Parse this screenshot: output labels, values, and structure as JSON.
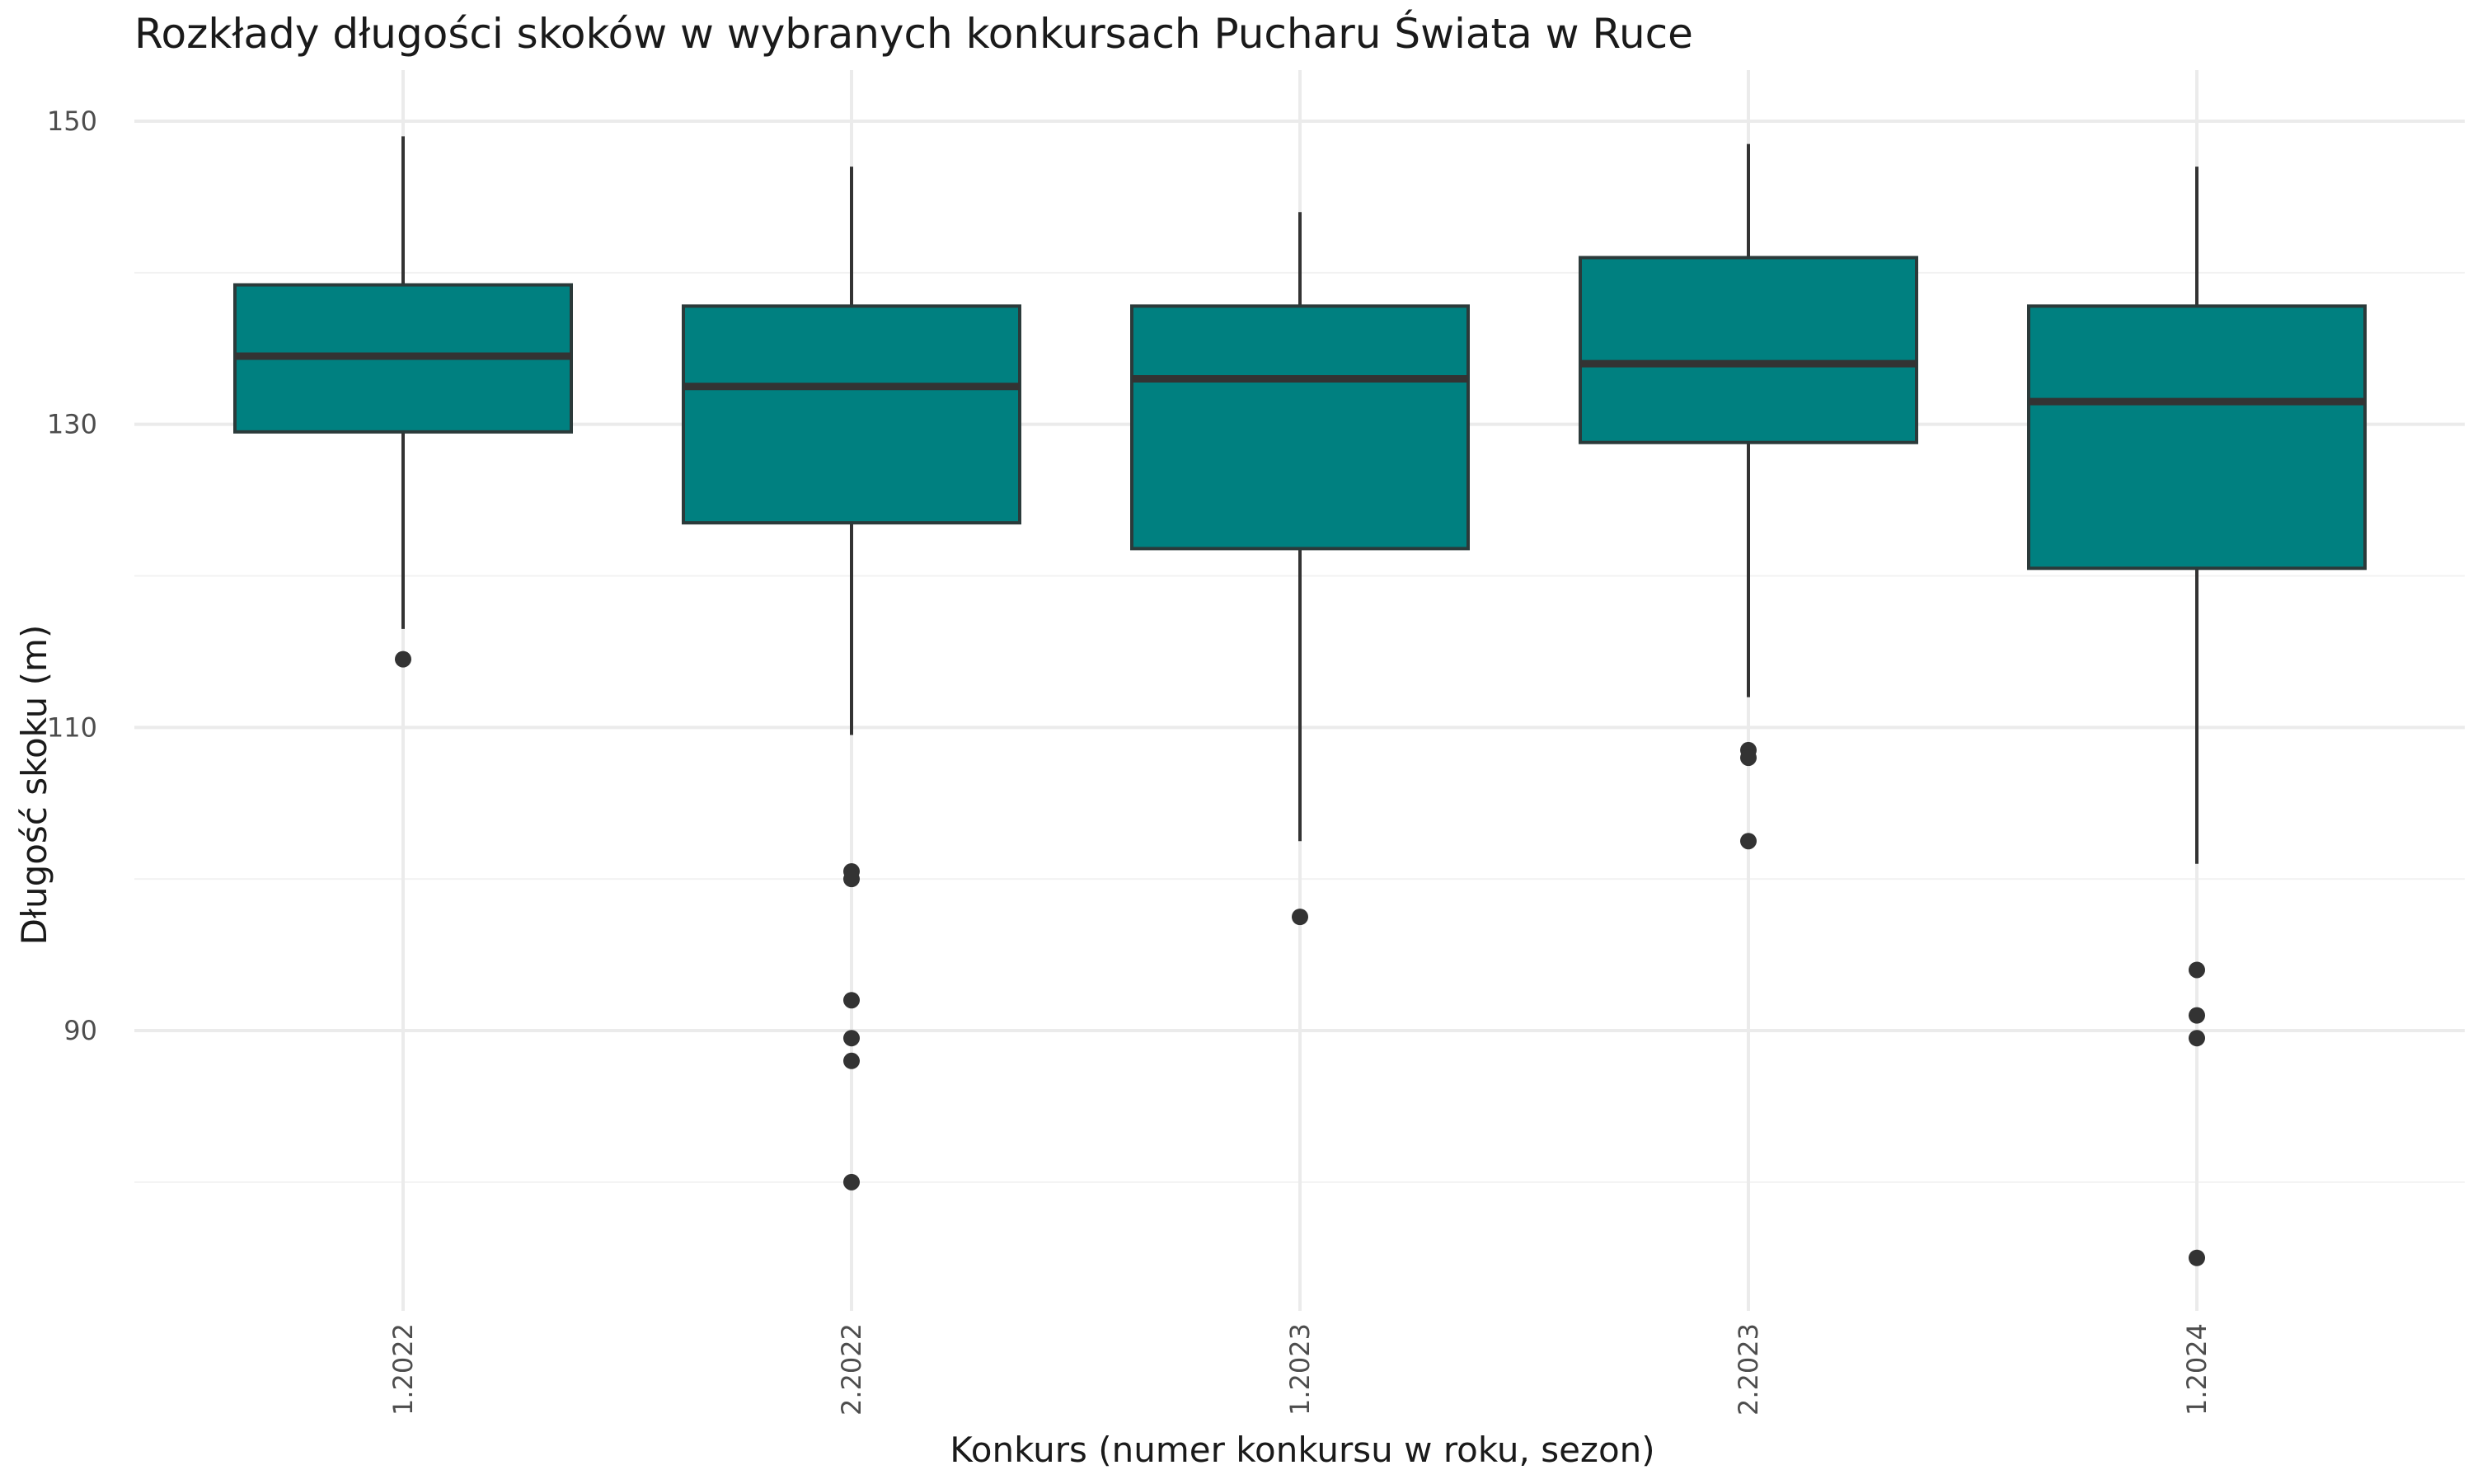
{
  "chart_data": {
    "type": "boxplot",
    "title": "Rozkłady długości skoków w wybranych konkursach Pucharu Świata w Ruce",
    "xlabel": "Konkurs (numer konkursu w roku, sezon)",
    "ylabel": "Długość skoku (m)",
    "ylim": [
      72,
      152
    ],
    "y_ticks": [
      90,
      110,
      130,
      150
    ],
    "y_minor_ticks": [
      80,
      100,
      120,
      140
    ],
    "grid": true,
    "fill_color": "#008080",
    "line_color": "#333333",
    "categories": [
      "1.2022",
      "2.2022",
      "1.2023",
      "2.2023",
      "1.2024"
    ],
    "boxes": [
      {
        "category": "1.2022",
        "lower_whisker": 116.5,
        "q1": 129.5,
        "median": 134.5,
        "q3": 139.2,
        "upper_whisker": 149.0,
        "outliers": [
          114.5
        ]
      },
      {
        "category": "2.2022",
        "lower_whisker": 109.5,
        "q1": 123.5,
        "median": 132.5,
        "q3": 137.8,
        "upper_whisker": 147.0,
        "outliers": [
          100.5,
          100.0,
          92.0,
          89.5,
          88.0,
          80.0
        ]
      },
      {
        "category": "1.2023",
        "lower_whisker": 102.5,
        "q1": 121.8,
        "median": 133.0,
        "q3": 137.8,
        "upper_whisker": 144.0,
        "outliers": [
          97.5
        ]
      },
      {
        "category": "2.2023",
        "lower_whisker": 112.0,
        "q1": 128.8,
        "median": 134.0,
        "q3": 141.0,
        "upper_whisker": 148.5,
        "outliers": [
          108.5,
          108.0,
          102.5
        ]
      },
      {
        "category": "1.2024",
        "lower_whisker": 101.0,
        "q1": 120.5,
        "median": 131.5,
        "q3": 137.8,
        "upper_whisker": 147.0,
        "outliers": [
          94.0,
          91.0,
          89.5,
          75.0
        ]
      }
    ]
  }
}
